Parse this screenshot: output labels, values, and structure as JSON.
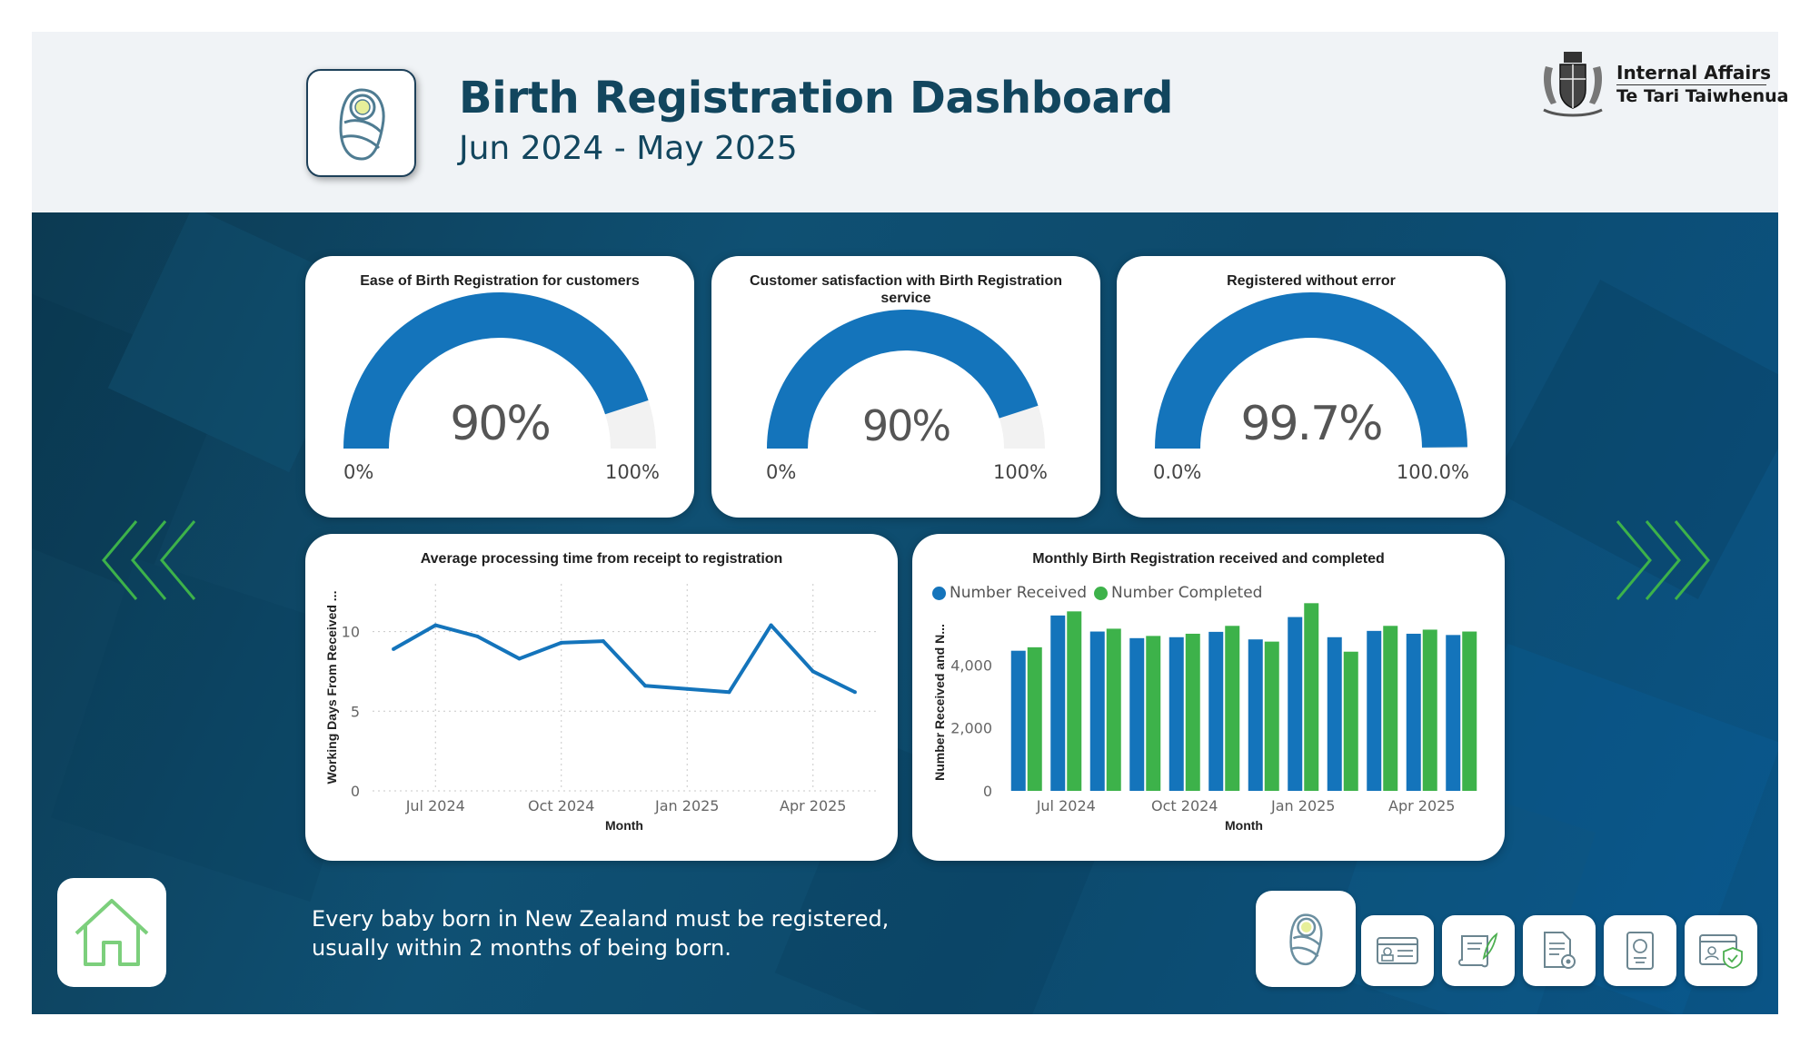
{
  "header": {
    "title": "Birth Registration Dashboard",
    "period": "Jun 2024 - May 2025",
    "agency_name": "Internal Affairs",
    "agency_name_maori": "Te Tari Taiwhenua"
  },
  "gauges": [
    {
      "title": "Ease of Birth Registration for customers",
      "value_label": "90%",
      "value": 0.9,
      "min_label": "0%",
      "max_label": "100%"
    },
    {
      "title": "Customer satisfaction with Birth Registration service",
      "value_label": "90%",
      "value": 0.9,
      "min_label": "0%",
      "max_label": "100%"
    },
    {
      "title": "Registered without error",
      "value_label": "99.7%",
      "value": 0.997,
      "min_label": "0.0%",
      "max_label": "100.0%"
    }
  ],
  "colors": {
    "blue": "#1474bb",
    "green": "#3db24a",
    "gauge_bg": "#f2f2f2",
    "accent_green": "#3db24a",
    "header_text": "#12465e"
  },
  "chart_data": [
    {
      "type": "line",
      "title": "Average processing time from receipt to registration",
      "xlabel": "Month",
      "ylabel": "Working Days From Received ...",
      "x": [
        "Jun 2024",
        "Jul 2024",
        "Aug 2024",
        "Sep 2024",
        "Oct 2024",
        "Nov 2024",
        "Dec 2024",
        "Jan 2025",
        "Feb 2025",
        "Mar 2025",
        "Apr 2025",
        "May 2025"
      ],
      "x_tick_labels": [
        "Jul 2024",
        "Oct 2024",
        "Jan 2025",
        "Apr 2025"
      ],
      "y_tick_labels": [
        "0",
        "5",
        "10"
      ],
      "series": [
        {
          "values": [
            8.9,
            10.4,
            9.7,
            8.3,
            9.3,
            9.4,
            6.6,
            6.4,
            6.2,
            10.4,
            7.5,
            6.2
          ]
        }
      ],
      "ylim": [
        0,
        13
      ],
      "grid": true
    },
    {
      "type": "bar",
      "title": "Monthly Birth Registration received and completed",
      "xlabel": "Month",
      "ylabel": "Number Received and N...",
      "categories": [
        "Jun 2024",
        "Jul 2024",
        "Aug 2024",
        "Sep 2024",
        "Oct 2024",
        "Nov 2024",
        "Dec 2024",
        "Jan 2025",
        "Feb 2025",
        "Mar 2025",
        "Apr 2025",
        "May 2025"
      ],
      "x_tick_labels": [
        "Jul 2024",
        "Oct 2024",
        "Jan 2025",
        "Apr 2025"
      ],
      "y_tick_labels": [
        "0",
        "2,000",
        "4,000"
      ],
      "series": [
        {
          "name": "Number Received",
          "values": [
            4450,
            5570,
            5060,
            4850,
            4880,
            5050,
            4810,
            5520,
            4880,
            5080,
            4990,
            4950
          ]
        },
        {
          "name": "Number Completed",
          "values": [
            4560,
            5700,
            5150,
            4920,
            4990,
            5240,
            4740,
            5960,
            4420,
            5240,
            5120,
            5060
          ]
        }
      ],
      "ylim": [
        0,
        6200
      ],
      "legend": "top-left",
      "grid": false
    }
  ],
  "footnote": {
    "line1": "Every baby born in New Zealand must be registered,",
    "line2": "usually within 2 months of being born."
  },
  "nav": {
    "icons": [
      "baby-icon",
      "id-card-icon",
      "certificate-scroll-icon",
      "document-gear-icon",
      "passport-icon",
      "identity-verify-icon"
    ],
    "home_icon": "home-icon"
  }
}
